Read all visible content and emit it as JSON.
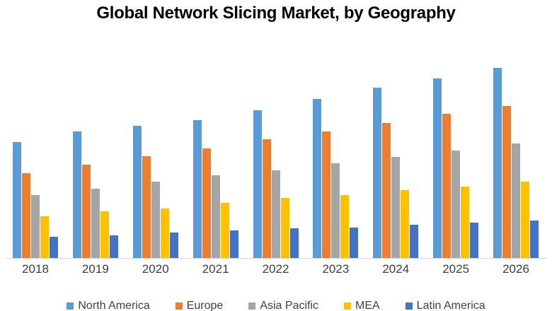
{
  "title": "Global Network Slicing Market, by Geography",
  "chart_data": {
    "type": "bar",
    "title": "Global Network Slicing Market, by Geography",
    "categories": [
      "2018",
      "2019",
      "2020",
      "2021",
      "2022",
      "2023",
      "2024",
      "2025",
      "2026"
    ],
    "series": [
      {
        "name": "North America",
        "color": "#5B9BD5",
        "values": [
          164,
          179,
          187,
          195,
          209,
          225,
          241,
          254,
          269
        ]
      },
      {
        "name": "Europe",
        "color": "#ED7D31",
        "values": [
          120,
          132,
          144,
          155,
          168,
          179,
          191,
          204,
          215
        ]
      },
      {
        "name": "Asia Pacific",
        "color": "#A5A5A5",
        "values": [
          89,
          98,
          108,
          117,
          124,
          134,
          143,
          152,
          162
        ]
      },
      {
        "name": "MEA",
        "color": "#FFC000",
        "values": [
          59,
          66,
          70,
          78,
          85,
          89,
          96,
          101,
          108
        ]
      },
      {
        "name": "Latin America",
        "color": "#4472C4",
        "values": [
          30,
          32,
          36,
          39,
          42,
          43,
          47,
          50,
          53
        ]
      }
    ],
    "xlabel": "",
    "ylabel": "",
    "ylim": [
      0,
      300
    ],
    "grid": false,
    "y_axis_visible": false,
    "legend_position": "bottom",
    "axis_line_color": "#d6d6d6"
  }
}
